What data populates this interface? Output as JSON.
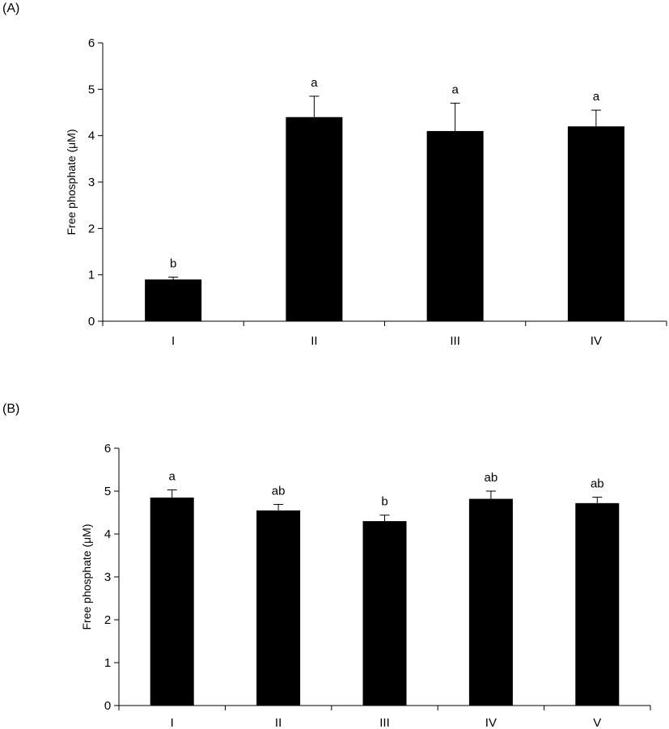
{
  "panels": [
    {
      "label": "(A)"
    },
    {
      "label": "(B)"
    }
  ],
  "chart_data": [
    {
      "type": "bar",
      "panel": "(A)",
      "title": "",
      "xlabel": "",
      "ylabel": "Free phosphate (μM)",
      "ylim": [
        0,
        6
      ],
      "yticks": [
        0,
        1,
        2,
        3,
        4,
        5,
        6
      ],
      "categories": [
        "I",
        "II",
        "III",
        "IV"
      ],
      "values": [
        0.9,
        4.4,
        4.1,
        4.2
      ],
      "errors": [
        0.05,
        0.45,
        0.6,
        0.35
      ],
      "annotations": [
        "b",
        "a",
        "a",
        "a"
      ],
      "bar_color": "#000000",
      "grid": false,
      "legend": "none"
    },
    {
      "type": "bar",
      "panel": "(B)",
      "title": "",
      "xlabel": "",
      "ylabel": "Free phosphate (μM)",
      "ylim": [
        0,
        6
      ],
      "yticks": [
        0,
        1,
        2,
        3,
        4,
        5,
        6
      ],
      "categories": [
        "I",
        "II",
        "III",
        "IV",
        "V"
      ],
      "values": [
        4.85,
        4.55,
        4.3,
        4.82,
        4.72
      ],
      "errors": [
        0.18,
        0.14,
        0.14,
        0.18,
        0.14
      ],
      "annotations": [
        "a",
        "ab",
        "b",
        "ab",
        "ab"
      ],
      "bar_color": "#000000",
      "grid": false,
      "legend": "none"
    }
  ]
}
